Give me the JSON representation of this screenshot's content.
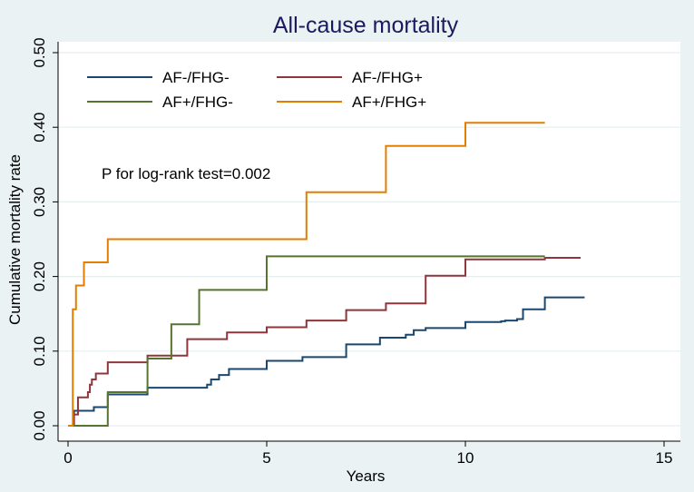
{
  "chart_data": {
    "type": "line",
    "step": true,
    "title": "All-cause mortality",
    "xlabel": "Years",
    "ylabel": "Cumulative mortality rate",
    "xlim": [
      0,
      15
    ],
    "ylim": [
      0,
      0.5
    ],
    "xticks": [
      0,
      5,
      10,
      15
    ],
    "xtick_labels": [
      "0",
      "5",
      "10",
      "15"
    ],
    "yticks": [
      0,
      0.1,
      0.2,
      0.3,
      0.4,
      0.5
    ],
    "ytick_labels": [
      "0.00",
      "0.10",
      "0.20",
      "0.30",
      "0.40",
      "0.50"
    ],
    "grid": true,
    "legend_position": "top-left",
    "annotation": "P for log-rank test=0.002",
    "series": [
      {
        "name": "AF-/FHG-",
        "color": "#1a476f",
        "x": [
          0,
          0.15,
          0.3,
          0.65,
          1.0,
          2.0,
          3.5,
          3.6,
          3.8,
          4.05,
          5.0,
          5.9,
          7.0,
          7.85,
          8.5,
          8.7,
          9.0,
          10.0,
          10.9,
          11.0,
          11.3,
          11.45,
          12.0,
          13.0
        ],
        "y": [
          0,
          0.02,
          0.02,
          0.025,
          0.042,
          0.051,
          0.055,
          0.062,
          0.068,
          0.076,
          0.087,
          0.092,
          0.109,
          0.118,
          0.122,
          0.128,
          0.131,
          0.139,
          0.14,
          0.141,
          0.143,
          0.156,
          0.172,
          0.172
        ]
      },
      {
        "name": "AF-/FHG+",
        "color": "#90353b",
        "x": [
          0,
          0.15,
          0.25,
          0.5,
          0.55,
          0.6,
          0.7,
          1.0,
          2.0,
          3.0,
          4.0,
          5.0,
          6.0,
          7.0,
          8.0,
          9.0,
          10.0,
          12.0,
          12.9
        ],
        "y": [
          0,
          0.015,
          0.038,
          0.045,
          0.055,
          0.062,
          0.07,
          0.085,
          0.094,
          0.116,
          0.125,
          0.132,
          0.141,
          0.155,
          0.164,
          0.201,
          0.223,
          0.225,
          0.225
        ]
      },
      {
        "name": "AF+/FHG-",
        "color": "#55752f",
        "x": [
          0,
          1.0,
          2.0,
          2.6,
          3.3,
          5.0,
          12.0
        ],
        "y": [
          0,
          0.045,
          0.09,
          0.136,
          0.182,
          0.227,
          0.227
        ]
      },
      {
        "name": "AF+/FHG+",
        "color": "#e37e00",
        "x": [
          0,
          0.12,
          0.2,
          0.4,
          1.0,
          6.0,
          8.0,
          10.0,
          12.0
        ],
        "y": [
          0,
          0.156,
          0.188,
          0.219,
          0.25,
          0.313,
          0.375,
          0.406,
          0.406
        ]
      }
    ]
  }
}
